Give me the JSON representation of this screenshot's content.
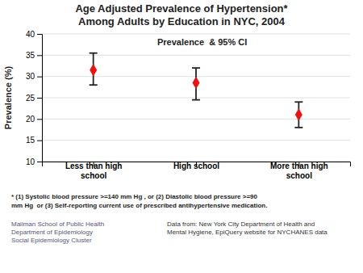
{
  "chart_data": {
    "type": "errorbar",
    "title": "Age Adjusted Prevalence of Hypertension*\nAmong Adults by Education in NYC, 2004",
    "categories": [
      "Less than high\nschool",
      "High school",
      "More than high\nschool"
    ],
    "values": [
      31.5,
      28.5,
      21.0
    ],
    "ci_lower": [
      28.0,
      24.5,
      18.0
    ],
    "ci_upper": [
      35.5,
      32.0,
      24.0
    ],
    "color": "#ee1111",
    "marker": "diamond",
    "ylabel": "Prevalence (%)",
    "ylim": [
      10,
      40
    ],
    "yticks": [
      10,
      15,
      20,
      25,
      30,
      35,
      40
    ],
    "grid": true,
    "annotation": "Prevalence  & 95% CI",
    "footnotes": [
      "* (1) Systolic blood pressure >=140 mm Hg , or (2) Diastolic blood pressure >=90",
      "mm Hg  or (3) Self-reporting current use of prescribed antihypertensive medication."
    ],
    "sources": [
      [
        "Mailman School of Public Health",
        "Department of Epidemiology",
        "Social Epidemiology Cluster"
      ],
      [
        "Data from: New York City Department of Health and",
        "Mental Hygiene, EpiQuery website for NYCHANES data"
      ]
    ]
  }
}
